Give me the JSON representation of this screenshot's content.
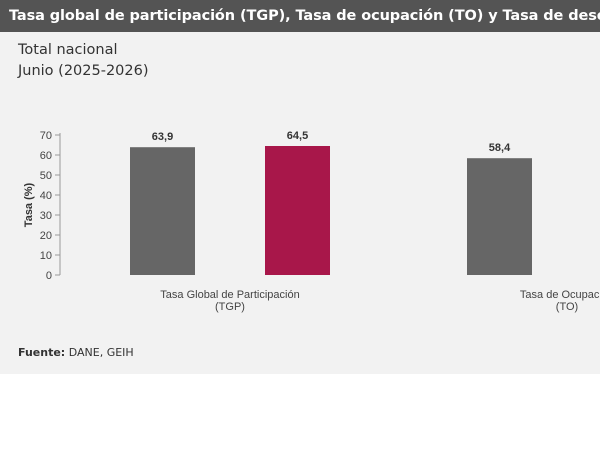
{
  "header": {
    "title": "Tasa global de participación (TGP), Tasa de ocupación (TO) y Tasa de desocupación (TD)",
    "subtitle_line1": "Total nacional",
    "subtitle_line2": "Junio (2025-2026)"
  },
  "footer": {
    "source_label": "Fuente:",
    "source_value": "DANE, GEIH"
  },
  "colors": {
    "series_2025": "#666666",
    "series_2026": "#a8174a"
  },
  "chart_data": {
    "type": "bar",
    "categories": [
      [
        "Tasa Global de Participación",
        "(TGP)"
      ],
      [
        "Tasa de Ocupación",
        "(TO)"
      ]
    ],
    "series": [
      {
        "values": [
          63.9,
          58.4
        ],
        "labels": [
          "63,9",
          "58,4"
        ]
      },
      {
        "values": [
          64.5,
          null
        ],
        "labels": [
          "64,5",
          ""
        ]
      }
    ],
    "ylabel": "Tasa (%)",
    "ylim": [
      0,
      70
    ],
    "yticks": [
      0,
      10,
      20,
      30,
      40,
      50,
      60,
      70
    ],
    "grid": false,
    "legend": "none"
  }
}
